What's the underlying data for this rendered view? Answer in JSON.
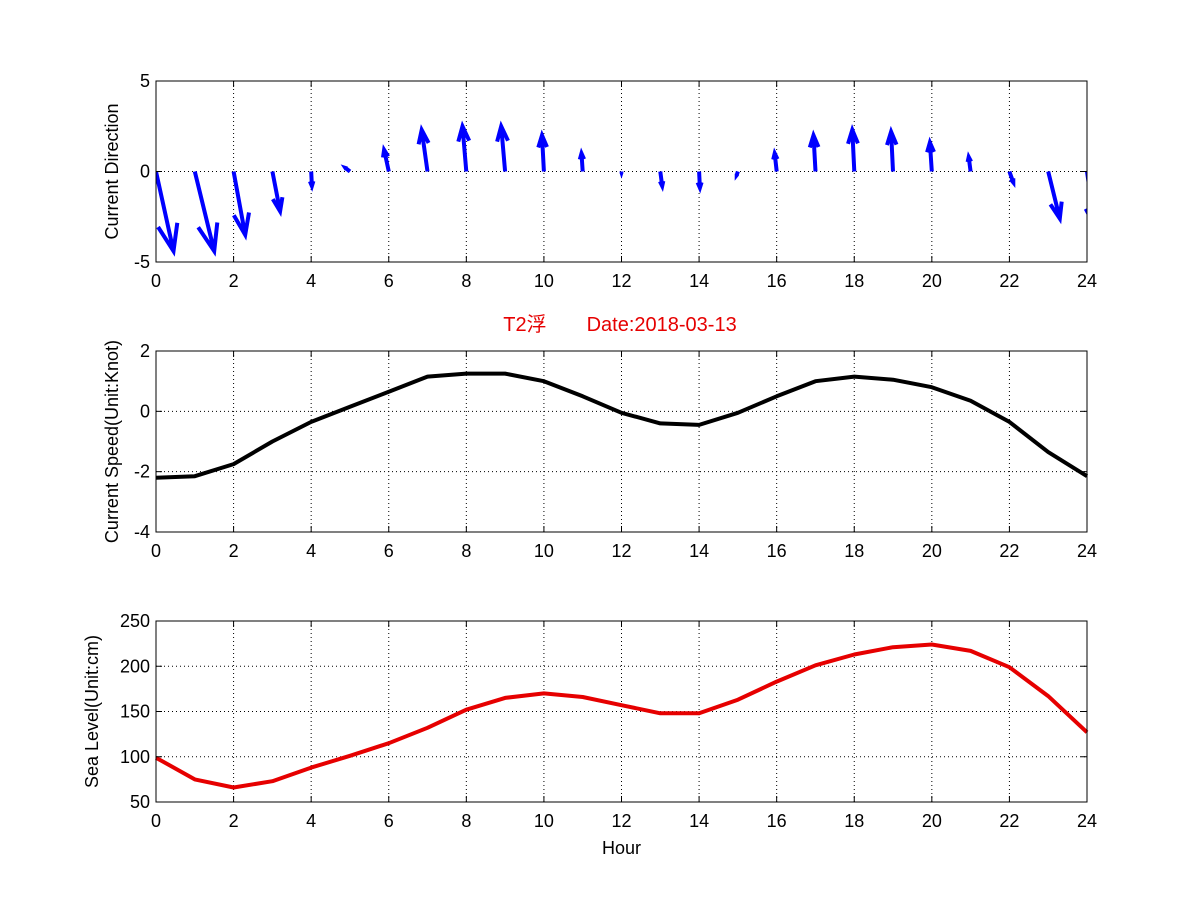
{
  "figure": {
    "title": "T2浮　　Date:2018-03-13",
    "title_color": "#e60000",
    "background": "#ffffff"
  },
  "chart_data": [
    {
      "type": "quiver",
      "ylabel": "Current Direction",
      "xlabel": "",
      "xlim": [
        0,
        24
      ],
      "ylim": [
        -5,
        5
      ],
      "xticks": [
        "0",
        "2",
        "4",
        "6",
        "8",
        "10",
        "12",
        "14",
        "16",
        "18",
        "20",
        "22",
        "24"
      ],
      "yticks": [
        "-5",
        "0",
        "5"
      ],
      "grid": true,
      "color": "#0000ff",
      "x": [
        0,
        1,
        2,
        3,
        4,
        5,
        6,
        7,
        8,
        9,
        10,
        11,
        12,
        13,
        14,
        15,
        16,
        17,
        18,
        19,
        20,
        21,
        22,
        23,
        24
      ],
      "u": [
        0.45,
        0.5,
        0.3,
        0.2,
        0.02,
        -0.12,
        -0.12,
        -0.15,
        -0.1,
        -0.1,
        -0.05,
        -0.03,
        0.0,
        0.05,
        0.02,
        -0.03,
        -0.05,
        -0.05,
        -0.05,
        -0.05,
        -0.05,
        -0.05,
        0.1,
        0.3,
        0.2
      ],
      "v": [
        -4.4,
        -4.4,
        -3.5,
        -2.2,
        -0.8,
        0.2,
        1.2,
        2.3,
        2.5,
        2.5,
        2.0,
        1.0,
        -0.05,
        -0.8,
        -0.9,
        -0.2,
        1.0,
        2.0,
        2.3,
        2.2,
        1.6,
        0.8,
        -0.6,
        -2.6,
        -3.0
      ]
    },
    {
      "type": "line",
      "ylabel": "Current Speed(Unit:Knot)",
      "xlabel": "",
      "xlim": [
        0,
        24
      ],
      "ylim": [
        -4,
        2
      ],
      "xticks": [
        "0",
        "2",
        "4",
        "6",
        "8",
        "10",
        "12",
        "14",
        "16",
        "18",
        "20",
        "22",
        "24"
      ],
      "yticks": [
        "-4",
        "-2",
        "0",
        "2"
      ],
      "grid": true,
      "color": "#000000",
      "x": [
        0,
        1,
        2,
        3,
        4,
        5,
        6,
        7,
        8,
        9,
        10,
        11,
        12,
        13,
        14,
        15,
        16,
        17,
        18,
        19,
        20,
        21,
        22,
        23,
        24
      ],
      "y": [
        -2.2,
        -2.15,
        -1.75,
        -1.0,
        -0.35,
        0.15,
        0.65,
        1.15,
        1.25,
        1.25,
        1.0,
        0.5,
        -0.05,
        -0.4,
        -0.45,
        -0.05,
        0.5,
        1.0,
        1.15,
        1.05,
        0.8,
        0.35,
        -0.35,
        -1.35,
        -2.15
      ]
    },
    {
      "type": "line",
      "ylabel": "Sea Level(Unit:cm)",
      "xlabel": "Hour",
      "xlim": [
        0,
        24
      ],
      "ylim": [
        50,
        250
      ],
      "xticks": [
        "0",
        "2",
        "4",
        "6",
        "8",
        "10",
        "12",
        "14",
        "16",
        "18",
        "20",
        "22",
        "24"
      ],
      "yticks": [
        "50",
        "100",
        "150",
        "200",
        "250"
      ],
      "grid": true,
      "color": "#e60000",
      "x": [
        0,
        1,
        2,
        3,
        4,
        5,
        6,
        7,
        8,
        9,
        10,
        11,
        12,
        13,
        14,
        15,
        16,
        17,
        18,
        19,
        20,
        21,
        22,
        23,
        24
      ],
      "y": [
        99,
        75,
        66,
        73,
        88,
        101,
        115,
        132,
        152,
        165,
        170,
        166,
        157,
        148,
        148,
        163,
        183,
        201,
        213,
        221,
        224,
        217,
        199,
        167,
        127
      ]
    }
  ]
}
